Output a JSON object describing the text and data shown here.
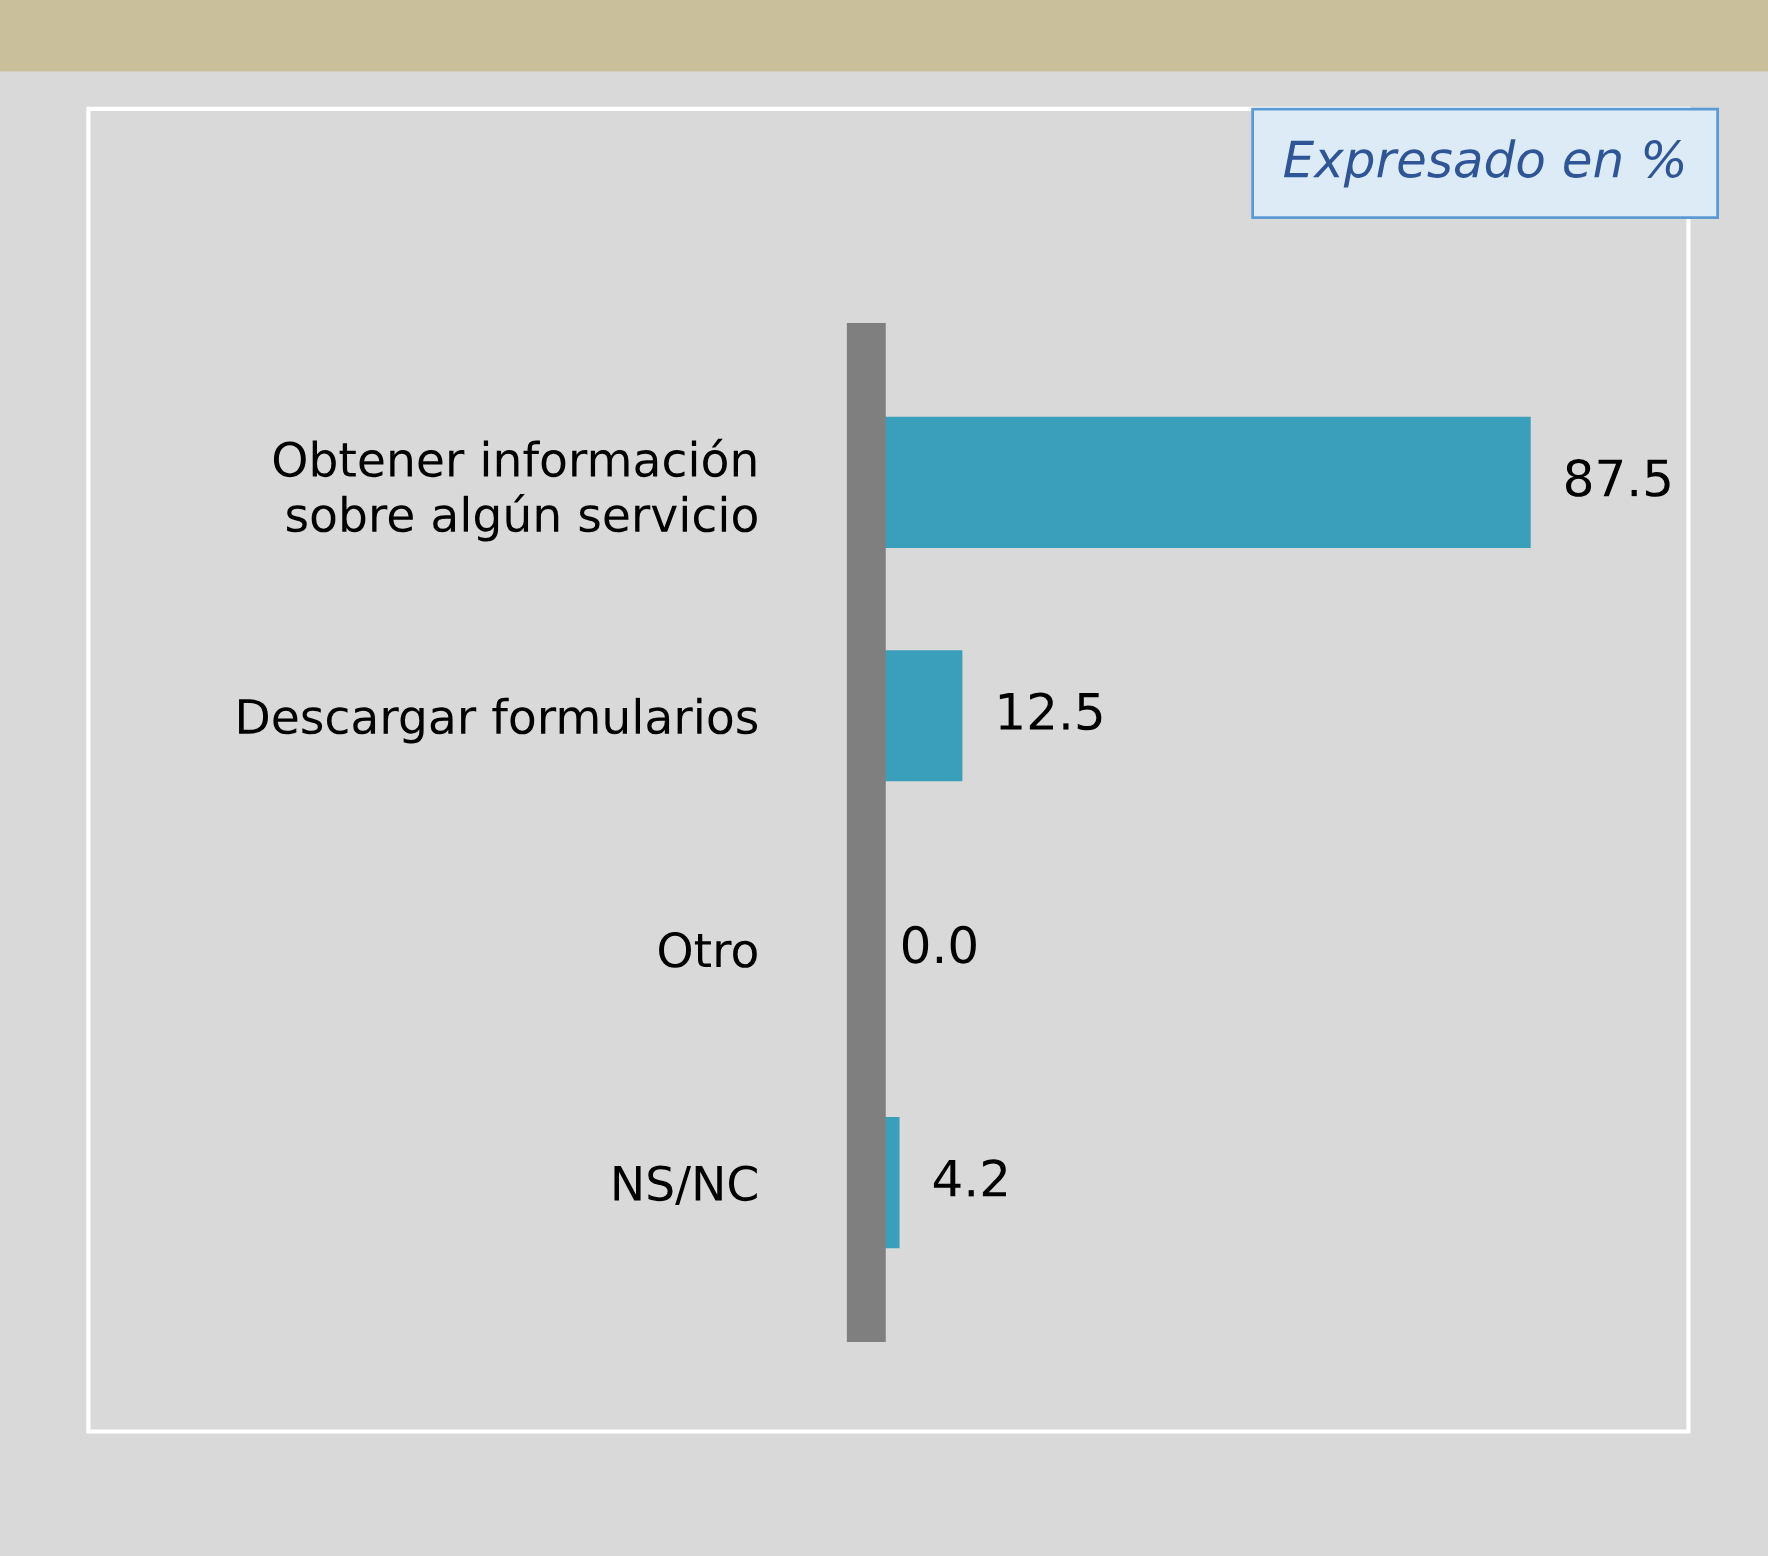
{
  "chart_data": {
    "type": "bar",
    "orientation": "horizontal",
    "categories": [
      "Obtener información\nsobre algún servicio",
      "Descargar formularios",
      "Otro",
      "NS/NC"
    ],
    "values": [
      87.5,
      12.5,
      0.0,
      4.2
    ],
    "value_labels": [
      "87.5",
      "12.5",
      "0.0",
      "4.2"
    ],
    "color": "#3a9fba",
    "tick_labels": "y",
    "grid": false,
    "legend": false,
    "annotations": [
      "Expresado en %"
    ]
  }
}
